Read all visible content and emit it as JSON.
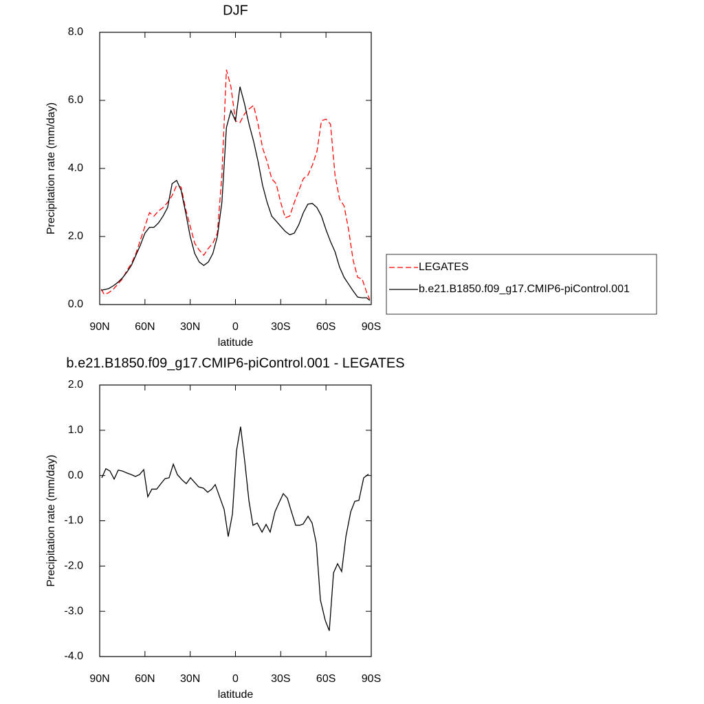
{
  "chart_data": [
    {
      "type": "line",
      "title": "DJF",
      "x_label": "latitude",
      "y_label": "Precipitation rate (mm/day)",
      "x": [
        89,
        87,
        84,
        81,
        78,
        75,
        72,
        69,
        66,
        63,
        60,
        57,
        54,
        51,
        48,
        45,
        42,
        39,
        36,
        33,
        30,
        27,
        24,
        21,
        18,
        15,
        12,
        9,
        6,
        3,
        0,
        -3,
        -6,
        -9,
        -12,
        -15,
        -18,
        -21,
        -24,
        -27,
        -30,
        -33,
        -36,
        -39,
        -42,
        -45,
        -48,
        -51,
        -54,
        -57,
        -60,
        -63,
        -66,
        -69,
        -72,
        -75,
        -78,
        -81,
        -84,
        -87,
        -89
      ],
      "series": [
        {
          "name": "LEGATES",
          "color": "#ff0000",
          "line_style": "dashed",
          "values": [
            0.45,
            0.3,
            0.35,
            0.45,
            0.6,
            0.75,
            1.0,
            1.2,
            1.5,
            1.9,
            2.3,
            2.7,
            2.6,
            2.75,
            2.85,
            3.0,
            3.2,
            3.5,
            3.45,
            2.8,
            2.3,
            1.8,
            1.6,
            1.45,
            1.65,
            1.8,
            2.1,
            3.8,
            6.9,
            6.4,
            5.4,
            5.35,
            5.6,
            5.75,
            5.85,
            5.3,
            4.6,
            4.2,
            3.7,
            3.55,
            3.0,
            2.55,
            2.6,
            3.0,
            3.35,
            3.7,
            3.8,
            4.1,
            4.5,
            5.4,
            5.45,
            5.3,
            3.8,
            3.1,
            2.9,
            2.2,
            1.3,
            0.8,
            0.75,
            0.35,
            0.15
          ]
        },
        {
          "name": "b.e21.B1850.f09_g17.CMIP6-piControl.001",
          "color": "#000000",
          "line_style": "solid",
          "values": [
            0.42,
            0.44,
            0.47,
            0.55,
            0.65,
            0.78,
            0.95,
            1.15,
            1.45,
            1.75,
            2.1,
            2.27,
            2.27,
            2.4,
            2.6,
            2.85,
            3.55,
            3.65,
            3.35,
            2.7,
            2.0,
            1.5,
            1.25,
            1.15,
            1.25,
            1.5,
            2.0,
            3.0,
            5.2,
            5.7,
            5.4,
            6.4,
            5.9,
            5.3,
            4.8,
            4.2,
            3.5,
            3.0,
            2.6,
            2.45,
            2.3,
            2.15,
            2.05,
            2.1,
            2.35,
            2.7,
            2.95,
            2.97,
            2.85,
            2.6,
            2.2,
            1.85,
            1.55,
            1.1,
            0.8,
            0.6,
            0.4,
            0.22,
            0.2,
            0.2,
            0.12
          ]
        }
      ],
      "xlim": [
        90,
        -90
      ],
      "xticks": [
        {
          "value": 90,
          "label": "90N"
        },
        {
          "value": 60,
          "label": "60N"
        },
        {
          "value": 30,
          "label": "30N"
        },
        0,
        {
          "value": -30,
          "label": "30S"
        },
        {
          "value": -60,
          "label": "60S"
        },
        {
          "value": -90,
          "label": "90S"
        }
      ],
      "ylim": [
        0,
        8
      ],
      "yticks": [
        {
          "value": 0,
          "label": "0.0"
        },
        {
          "value": 2,
          "label": "2.0"
        },
        {
          "value": 4,
          "label": "4.0"
        },
        {
          "value": 6,
          "label": "6.0"
        },
        {
          "value": 8,
          "label": "8.0"
        }
      ],
      "legend": "outside-right"
    },
    {
      "type": "line",
      "title": "b.e21.B1850.f09_g17.CMIP6-piControl.001 - LEGATES",
      "x_label": "latitude",
      "y_label": "Precipitation rate (mm/day)",
      "x": [
        88.6,
        85.9,
        83.2,
        80.4,
        77.7,
        75,
        72.2,
        69,
        66.3,
        63.6,
        60.8,
        58.1,
        55.4,
        52.2,
        49.4,
        46.7,
        44,
        41.2,
        38.5,
        35.3,
        32.6,
        29.8,
        27.1,
        24.4,
        21.2,
        18.4,
        15.7,
        13.4,
        10.2,
        7.5,
        4.8,
        2,
        -0.7,
        -3.4,
        -6.2,
        -8.9,
        -11.6,
        -14.4,
        -17.6,
        -20.3,
        -23,
        -26.2,
        -28.9,
        -31.7,
        -34.4,
        -37.1,
        -39.9,
        -42.6,
        -44.9,
        -48.1,
        -50.8,
        -53.6,
        -56.3,
        -59.5,
        -62.2,
        -65,
        -67.7,
        -70.4,
        -73.2,
        -76.4,
        -79.1,
        -81.8,
        -85,
        -88.2
      ],
      "values": [
        -0.05,
        0.15,
        0.1,
        -0.08,
        0.12,
        0.1,
        0.06,
        0.02,
        -0.02,
        0.02,
        0.13,
        -0.47,
        -0.3,
        -0.3,
        -0.18,
        -0.07,
        -0.05,
        0.25,
        0.02,
        -0.1,
        -0.18,
        -0.05,
        -0.15,
        -0.25,
        -0.28,
        -0.37,
        -0.3,
        -0.2,
        -0.5,
        -0.75,
        -1.35,
        -0.85,
        0.55,
        1.08,
        0.3,
        -0.55,
        -1.1,
        -1.05,
        -1.25,
        -1.08,
        -1.25,
        -0.8,
        -0.6,
        -0.4,
        -0.5,
        -0.8,
        -1.1,
        -1.1,
        -1.07,
        -0.9,
        -1.05,
        -1.5,
        -2.75,
        -3.2,
        -3.43,
        -2.15,
        -1.95,
        -2.12,
        -1.35,
        -0.8,
        -0.57,
        -0.55,
        -0.05,
        0.03
      ],
      "color": "#000000",
      "xlim": [
        90,
        -90
      ],
      "xticks": [
        {
          "value": 90,
          "label": "90N"
        },
        {
          "value": 60,
          "label": "60N"
        },
        {
          "value": 30,
          "label": "30N"
        },
        0,
        {
          "value": -30,
          "label": "30S"
        },
        {
          "value": -60,
          "label": "60S"
        },
        {
          "value": -90,
          "label": "90S"
        }
      ],
      "ylim": [
        -4,
        2
      ],
      "yticks": [
        {
          "value": -4,
          "label": "-4.0"
        },
        {
          "value": -3,
          "label": "-3.0"
        },
        {
          "value": -2,
          "label": "-2.0"
        },
        {
          "value": -1,
          "label": "-1.0"
        },
        {
          "value": 0,
          "label": "0.0"
        },
        {
          "value": 1,
          "label": "1.0"
        },
        {
          "value": 2,
          "label": "2.0"
        }
      ]
    }
  ]
}
